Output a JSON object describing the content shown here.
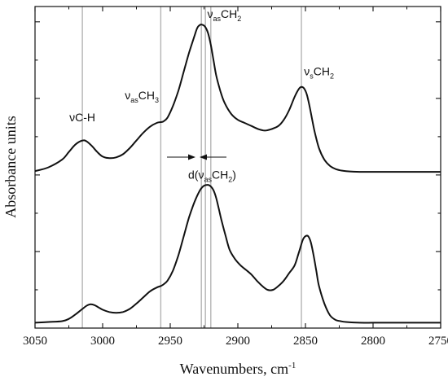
{
  "chart_data": {
    "type": "line",
    "xlabel": "Wavenumbers, cm",
    "xlabel_superscript": "-1",
    "ylabel": "Absorbance units",
    "xlim": [
      3050,
      2750
    ],
    "x_reversed": true,
    "x_ticks": [
      3050,
      3000,
      2950,
      2900,
      2850,
      2800,
      2750
    ],
    "x_tick_labels": [
      "3050",
      "3000",
      "2950",
      "2900",
      "2850",
      "2800",
      "2750"
    ],
    "y_ticks_labeled": false,
    "grid": false,
    "ylim": [
      0,
      4.2
    ],
    "reference_lines_x": [
      3015,
      2957,
      2927,
      2924,
      2920,
      2853
    ],
    "series": [
      {
        "x": [
          3050,
          3040,
          3030,
          3025,
          3020,
          3015,
          3012,
          3008,
          3004,
          3000,
          2995,
          2990,
          2985,
          2980,
          2975,
          2970,
          2965,
          2960,
          2957,
          2955,
          2952,
          2948,
          2944,
          2940,
          2936,
          2932,
          2930,
          2928,
          2926,
          2924,
          2922,
          2920,
          2918,
          2916,
          2913,
          2910,
          2905,
          2900,
          2895,
          2890,
          2885,
          2880,
          2875,
          2870,
          2866,
          2862,
          2858,
          2855,
          2853,
          2851,
          2849,
          2847,
          2845,
          2843,
          2840,
          2836,
          2832,
          2828,
          2824,
          2820,
          2810,
          2800,
          2790,
          2780,
          2770,
          2760,
          2750
        ],
        "y": [
          2.05,
          2.1,
          2.2,
          2.3,
          2.4,
          2.45,
          2.44,
          2.38,
          2.3,
          2.24,
          2.22,
          2.23,
          2.27,
          2.35,
          2.45,
          2.55,
          2.63,
          2.68,
          2.69,
          2.7,
          2.75,
          2.9,
          3.1,
          3.35,
          3.6,
          3.82,
          3.92,
          3.96,
          3.96,
          3.93,
          3.85,
          3.7,
          3.5,
          3.3,
          3.1,
          2.95,
          2.8,
          2.72,
          2.68,
          2.64,
          2.6,
          2.58,
          2.6,
          2.64,
          2.72,
          2.85,
          3.02,
          3.12,
          3.15,
          3.13,
          3.05,
          2.9,
          2.72,
          2.55,
          2.35,
          2.2,
          2.12,
          2.08,
          2.06,
          2.05,
          2.04,
          2.04,
          2.04,
          2.04,
          2.04,
          2.04,
          2.04
        ]
      },
      {
        "x": [
          3050,
          3040,
          3030,
          3025,
          3020,
          3015,
          3012,
          3009,
          3006,
          3003,
          3000,
          2995,
          2990,
          2985,
          2980,
          2975,
          2970,
          2965,
          2960,
          2957,
          2955,
          2952,
          2948,
          2944,
          2940,
          2936,
          2932,
          2928,
          2925,
          2922,
          2920,
          2918,
          2916,
          2914,
          2912,
          2909,
          2906,
          2902,
          2898,
          2894,
          2890,
          2886,
          2882,
          2878,
          2874,
          2870,
          2866,
          2862,
          2858,
          2855,
          2852,
          2850,
          2848,
          2846,
          2844,
          2842,
          2840,
          2836,
          2832,
          2828,
          2824,
          2820,
          2810,
          2800,
          2790,
          2780,
          2770,
          2760,
          2750
        ],
        "y": [
          0.07,
          0.08,
          0.09,
          0.12,
          0.18,
          0.25,
          0.29,
          0.31,
          0.3,
          0.27,
          0.24,
          0.21,
          0.2,
          0.21,
          0.25,
          0.32,
          0.4,
          0.48,
          0.53,
          0.55,
          0.57,
          0.62,
          0.75,
          0.95,
          1.2,
          1.45,
          1.65,
          1.8,
          1.86,
          1.87,
          1.85,
          1.8,
          1.7,
          1.55,
          1.4,
          1.2,
          1.02,
          0.9,
          0.82,
          0.76,
          0.7,
          0.62,
          0.55,
          0.5,
          0.5,
          0.55,
          0.62,
          0.72,
          0.82,
          0.98,
          1.15,
          1.2,
          1.2,
          1.12,
          0.95,
          0.75,
          0.55,
          0.32,
          0.17,
          0.11,
          0.09,
          0.08,
          0.07,
          0.07,
          0.07,
          0.07,
          0.07,
          0.07,
          0.07
        ]
      }
    ],
    "annotations": [
      {
        "id": "vch",
        "main": "νC-H",
        "sub": "",
        "tail": "",
        "x": 3015,
        "y": 2.7
      },
      {
        "id": "vasch3",
        "main": "ν",
        "sub": "as",
        "tail": "CH",
        "tail_sub": "3",
        "x": 2971,
        "y": 2.99
      },
      {
        "id": "vasch2",
        "main": "ν",
        "sub": "as",
        "tail": "CH",
        "tail_sub": "2",
        "x": 2910,
        "y": 4.05
      },
      {
        "id": "vsch2",
        "main": "ν",
        "sub": "s",
        "tail": "CH",
        "tail_sub": "2",
        "x": 2840,
        "y": 3.3
      },
      {
        "id": "dvasch2",
        "main": "d(ν",
        "sub": "as",
        "tail": "CH",
        "tail_sub": "2",
        "close": ")",
        "x": 2919,
        "y": 1.95
      }
    ]
  }
}
